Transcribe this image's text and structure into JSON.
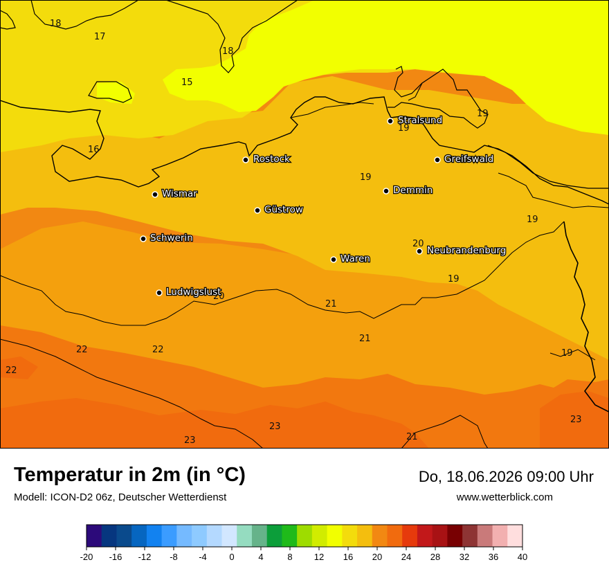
{
  "map": {
    "colors": {
      "t15": "#f2ff00",
      "t16": "#f3dc0c",
      "t19": "#f4be0e",
      "t20": "#f4a00d",
      "t21": "#f28812",
      "t22": "#f2780f",
      "t23": "#f16b0e"
    },
    "cities": [
      {
        "name": "Stralsund"
      },
      {
        "name": "Rostock"
      },
      {
        "name": "Greifswald"
      },
      {
        "name": "Wismar"
      },
      {
        "name": "Demmin"
      },
      {
        "name": "Güstrow"
      },
      {
        "name": "Schwerin"
      },
      {
        "name": "Neubrandenburg"
      },
      {
        "name": "Waren"
      },
      {
        "name": "Ludwigslust"
      }
    ],
    "isolines": [
      {
        "value": "18"
      },
      {
        "value": "17"
      },
      {
        "value": "18"
      },
      {
        "value": "15"
      },
      {
        "value": "16"
      },
      {
        "value": "19"
      },
      {
        "value": "19"
      },
      {
        "value": "19"
      },
      {
        "value": "20"
      },
      {
        "value": "19"
      },
      {
        "value": "20"
      },
      {
        "value": "21"
      },
      {
        "value": "21"
      },
      {
        "value": "22"
      },
      {
        "value": "22"
      },
      {
        "value": "22"
      },
      {
        "value": "19"
      },
      {
        "value": "23"
      },
      {
        "value": "23"
      },
      {
        "value": "21"
      },
      {
        "value": "23"
      },
      {
        "value": "19"
      }
    ]
  },
  "footer": {
    "title": "Temperatur in 2m (in °C)",
    "subtitle": "Modell: ICON-D2 06z, Deutscher Wetterdienst",
    "datetime": "Do, 18.06.2026 09:00 Uhr",
    "website": "www.wetterblick.com"
  },
  "legend": {
    "colors": [
      "#2c0a7a",
      "#06367f",
      "#0a4a8c",
      "#0666c0",
      "#1282f0",
      "#3b9cff",
      "#75baff",
      "#8ecaff",
      "#b4d9ff",
      "#d2e7ff",
      "#95dcc0",
      "#66b38a",
      "#0c9e3a",
      "#1fba1a",
      "#9edc00",
      "#d1ec00",
      "#f2ff00",
      "#f3dc0c",
      "#f4be0e",
      "#f28812",
      "#f16b0e",
      "#e63a0c",
      "#c2181a",
      "#a81214",
      "#780002",
      "#8e3434",
      "#c97a7a",
      "#f2b0b0",
      "#ffdede"
    ],
    "ticks": [
      "-20",
      "-16",
      "-12",
      "-8",
      "-4",
      "0",
      "4",
      "8",
      "12",
      "16",
      "20",
      "24",
      "28",
      "32",
      "36",
      "40"
    ]
  }
}
